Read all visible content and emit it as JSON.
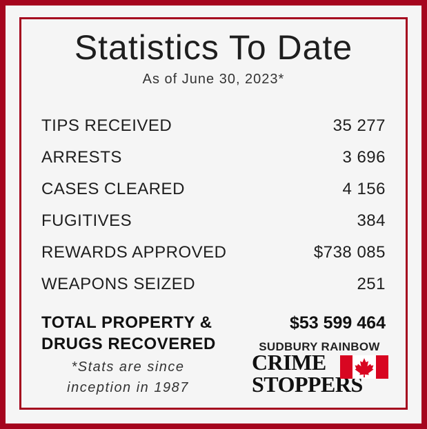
{
  "header": {
    "title": "Statistics To Date",
    "subtitle": "As of June 30, 2023*"
  },
  "stats": [
    {
      "label": "TIPS RECEIVED",
      "value": "35 277"
    },
    {
      "label": "ARRESTS",
      "value": "3 696"
    },
    {
      "label": "CASES CLEARED",
      "value": "4 156"
    },
    {
      "label": "FUGITIVES",
      "value": "384"
    },
    {
      "label": "REWARDS APPROVED",
      "value": "$738 085"
    },
    {
      "label": "WEAPONS SEIZED",
      "value": "251"
    }
  ],
  "total": {
    "label_line1": "TOTAL PROPERTY &",
    "label_line2": "DRUGS RECOVERED",
    "value": "$53 599 464"
  },
  "note": {
    "line1": "*Stats are since",
    "line2": "inception in 1987"
  },
  "logo": {
    "top": "SUDBURY RAINBOW",
    "word1": "CRIME",
    "word2": "STOPPERS",
    "flag_icon": "canada-flag-icon"
  },
  "colors": {
    "brand_red": "#a5051e",
    "background": "#f5f5f5",
    "text": "#1e1e1e"
  }
}
